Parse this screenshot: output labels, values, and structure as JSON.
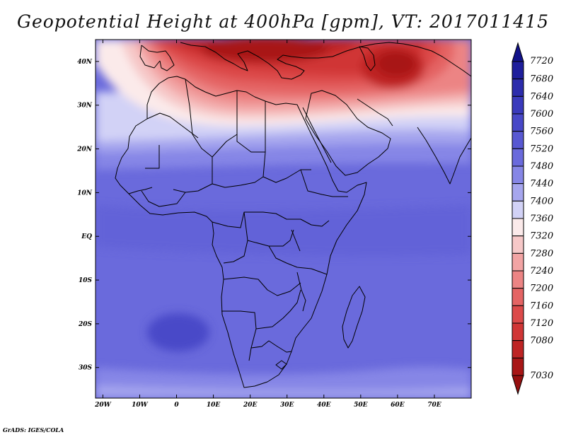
{
  "title": "Geopotential Height at 400hPa [gpm], VT: 2017011415",
  "footer": "GrADS: IGES/COLA",
  "map": {
    "lon_range": [
      -22,
      80
    ],
    "lat_range": [
      -37,
      45
    ],
    "lon_ticks": [
      {
        "value": -20,
        "label": "20W"
      },
      {
        "value": -10,
        "label": "10W"
      },
      {
        "value": 0,
        "label": "0"
      },
      {
        "value": 10,
        "label": "10E"
      },
      {
        "value": 20,
        "label": "20E"
      },
      {
        "value": 30,
        "label": "30E"
      },
      {
        "value": 40,
        "label": "40E"
      },
      {
        "value": 50,
        "label": "50E"
      },
      {
        "value": 60,
        "label": "60E"
      },
      {
        "value": 70,
        "label": "70E"
      }
    ],
    "lat_ticks": [
      {
        "value": 40,
        "label": "40N"
      },
      {
        "value": 30,
        "label": "30N"
      },
      {
        "value": 20,
        "label": "20N"
      },
      {
        "value": 10,
        "label": "10N"
      },
      {
        "value": 0,
        "label": "EQ"
      },
      {
        "value": -10,
        "label": "10S"
      },
      {
        "value": -20,
        "label": "20S"
      },
      {
        "value": -30,
        "label": "30S"
      }
    ]
  },
  "colorbar": {
    "levels": [
      {
        "label": "7720",
        "color": "#1e1e9c"
      },
      {
        "label": "7680",
        "color": "#2c2cac"
      },
      {
        "label": "7640",
        "color": "#3a3abc"
      },
      {
        "label": "7600",
        "color": "#4848c8"
      },
      {
        "label": "7560",
        "color": "#5858d2"
      },
      {
        "label": "7520",
        "color": "#6a6adc"
      },
      {
        "label": "7480",
        "color": "#8686e6"
      },
      {
        "label": "7440",
        "color": "#a6a6ee"
      },
      {
        "label": "7400",
        "color": "#d2d2f6"
      },
      {
        "label": "7360",
        "color": "#fbeaea"
      },
      {
        "label": "7320",
        "color": "#f6c8c8"
      },
      {
        "label": "7280",
        "color": "#f2a4a4"
      },
      {
        "label": "7240",
        "color": "#ec8484"
      },
      {
        "label": "7200",
        "color": "#e46464"
      },
      {
        "label": "7160",
        "color": "#dc4a4a"
      },
      {
        "label": "7120",
        "color": "#d03636"
      },
      {
        "label": "7080",
        "color": "#be2424"
      },
      {
        "label": "7030",
        "color": "#a81616"
      }
    ],
    "top_arrow_color": "#12128a",
    "bottom_arrow_color": "#961010"
  }
}
